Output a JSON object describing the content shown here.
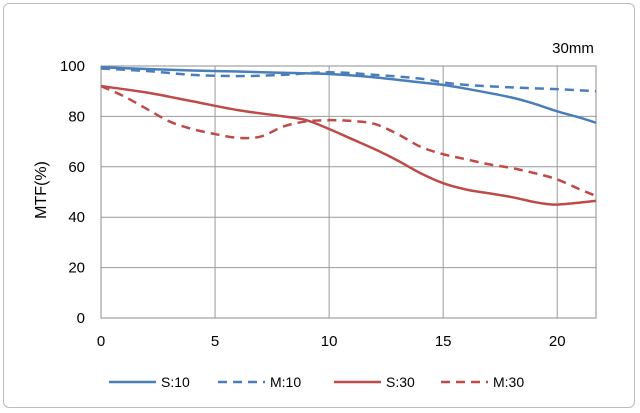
{
  "chart_data": {
    "type": "line",
    "title": "",
    "annotation": "30mm",
    "xlabel": "",
    "ylabel": "MTF(%)",
    "xlim": [
      0,
      21.7
    ],
    "ylim": [
      0,
      100
    ],
    "xticks": [
      "0",
      "5",
      "10",
      "15",
      "20"
    ],
    "yticks": [
      "0",
      "20",
      "40",
      "60",
      "80",
      "100"
    ],
    "grid": true,
    "legend_position": "bottom",
    "series": [
      {
        "name": "S:10",
        "color": "#4a7ebb",
        "dash": "solid",
        "x": [
          0,
          2,
          4,
          6,
          8,
          10,
          12,
          14,
          15,
          16,
          18,
          19,
          20,
          21,
          21.7
        ],
        "y": [
          99.5,
          98.8,
          98.2,
          97.8,
          97.3,
          96.8,
          95.5,
          93.5,
          92.5,
          91,
          87.5,
          85,
          82,
          79.5,
          77.5
        ]
      },
      {
        "name": "M:10",
        "color": "#4a7ebb",
        "dash": "dashed",
        "x": [
          0,
          2,
          4,
          6,
          8,
          10,
          12,
          14,
          15,
          16,
          18,
          20,
          21.7
        ],
        "y": [
          99,
          98,
          96.5,
          96,
          96.5,
          97.5,
          96.5,
          95,
          93.5,
          92.5,
          91.5,
          90.8,
          90
        ]
      },
      {
        "name": "S:30",
        "color": "#be4b48",
        "dash": "solid",
        "x": [
          0,
          2,
          4,
          6,
          8,
          9,
          10,
          11,
          12,
          13,
          14,
          15,
          16,
          17,
          18,
          19,
          19.5,
          20,
          21,
          21.7
        ],
        "y": [
          92,
          89.5,
          86,
          82.5,
          80,
          78.5,
          75,
          71,
          67,
          62.5,
          57.5,
          53.5,
          51,
          49.5,
          48,
          46,
          45.3,
          45,
          45.8,
          46.5
        ]
      },
      {
        "name": "M:30",
        "color": "#be4b48",
        "dash": "dashed",
        "x": [
          0,
          1,
          2,
          3,
          4,
          5,
          6,
          7,
          8,
          9,
          10,
          11,
          12,
          13,
          14,
          15,
          16,
          17,
          18,
          19,
          20,
          21,
          21.7
        ],
        "y": [
          92,
          88,
          83,
          78,
          75,
          73,
          71.5,
          72,
          76,
          78,
          78.5,
          78.2,
          77,
          73,
          68,
          65,
          63,
          61,
          59.5,
          57.5,
          55,
          51,
          48.5
        ]
      }
    ]
  }
}
